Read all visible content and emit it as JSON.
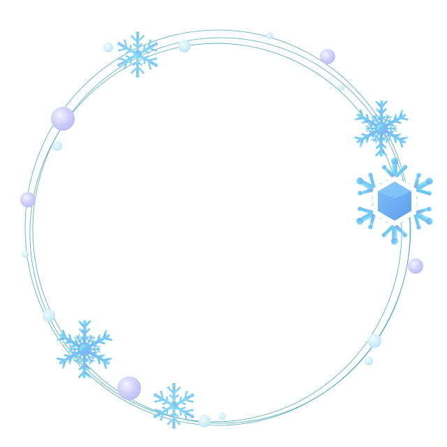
{
  "colors": {
    "ring": "#4aaab8",
    "bead_light": "#f0f0ff",
    "bead_mid": "#c9c8f8",
    "bead_dark": "#b0b5f0",
    "flake_cyan": "#8fe6f8",
    "flake_blue": "#64b8f0",
    "flake_violet": "#9b9cf0",
    "hexagon": "#6aa8f4"
  },
  "icons": {
    "snowflake": "snowflake-icon",
    "bead": "bead-icon",
    "ring": "ring-line"
  }
}
